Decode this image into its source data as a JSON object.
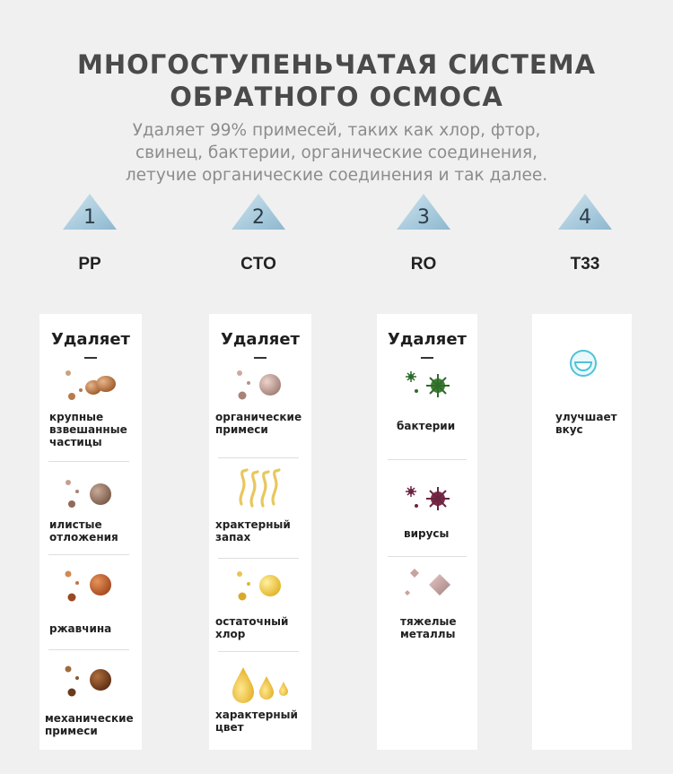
{
  "header": {
    "title_line1": "МНОГОСТУПЕНЬЧАТАЯ СИСТЕМА",
    "title_line2": "ОБРАТНОГО ОСМОСА",
    "subtitle_line1": "Удаляет 99% примесей, таких как хлор, фтор,",
    "subtitle_line2": "свинец, бактерии, органические соединения,",
    "subtitle_line3": "летучие органические соединения и так далее."
  },
  "stages": [
    {
      "number": "1",
      "name": "PP"
    },
    {
      "number": "2",
      "name": "CTO"
    },
    {
      "number": "3",
      "name": "RO"
    },
    {
      "number": "4",
      "name": "T33"
    }
  ],
  "cards": [
    {
      "heading": "Удаляет",
      "items": [
        {
          "label": "крупные\nвзвешанные\nчастицы",
          "icon": "large-particles-icon"
        },
        {
          "label": "илистые\nотложения",
          "icon": "silt-icon"
        },
        {
          "label": "ржавчина",
          "icon": "rust-icon"
        },
        {
          "label": "механические\nпримеси",
          "icon": "mechanical-impurities-icon"
        }
      ]
    },
    {
      "heading": "Удаляет",
      "items": [
        {
          "label": "органические\nпримеси",
          "icon": "organic-impurities-icon"
        },
        {
          "label": "храктерный\nзапах",
          "icon": "odor-icon"
        },
        {
          "label": "остаточный\nхлор",
          "icon": "chlorine-icon"
        },
        {
          "label": "характерный\nцвет",
          "icon": "color-drops-icon"
        }
      ]
    },
    {
      "heading": "Удаляет",
      "items": [
        {
          "label": "бактерии",
          "icon": "bacteria-icon"
        },
        {
          "label": "вирусы",
          "icon": "virus-icon"
        },
        {
          "label": "тяжелые\nметаллы",
          "icon": "heavy-metals-icon"
        }
      ]
    },
    {
      "heading": "",
      "items": [
        {
          "label": "улучшает\nвкус",
          "icon": "smile-icon"
        }
      ]
    }
  ],
  "colors": {
    "background": "#f0f0f0",
    "title": "#4a4a4a",
    "subtitle": "#8c8c8c",
    "triangle": "#9fc3d6"
  }
}
